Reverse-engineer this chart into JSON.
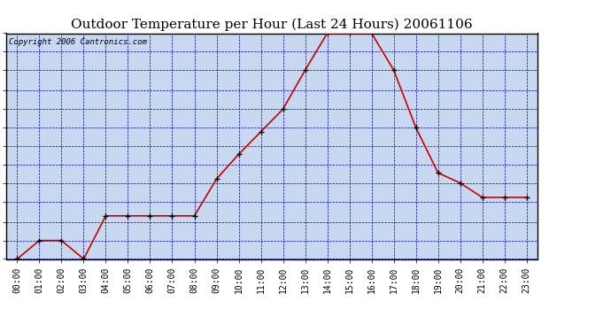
{
  "title": "Outdoor Temperature per Hour (Last 24 Hours) 20061106",
  "copyright_text": "Copyright 2006 Cantronics.com",
  "hours": [
    0,
    1,
    2,
    3,
    4,
    5,
    6,
    7,
    8,
    9,
    10,
    11,
    12,
    13,
    14,
    15,
    16,
    17,
    18,
    19,
    20,
    21,
    22,
    23
  ],
  "hour_labels": [
    "00:00",
    "01:00",
    "02:00",
    "03:00",
    "04:00",
    "05:00",
    "06:00",
    "07:00",
    "08:00",
    "09:00",
    "10:00",
    "11:00",
    "12:00",
    "13:00",
    "14:00",
    "15:00",
    "16:00",
    "17:00",
    "18:00",
    "19:00",
    "20:00",
    "21:00",
    "22:00",
    "23:00"
  ],
  "temps": [
    42.0,
    42.9,
    42.9,
    42.0,
    44.1,
    44.1,
    44.1,
    44.1,
    44.1,
    45.9,
    47.1,
    48.2,
    49.3,
    51.2,
    53.0,
    53.0,
    53.0,
    51.2,
    48.4,
    46.2,
    45.7,
    45.0,
    45.0,
    45.0
  ],
  "line_color": "#cc0000",
  "marker_color": "#000000",
  "bg_color": "#ffffff",
  "plot_bg_color": "#c8d8f0",
  "grid_color": "#0000bb",
  "title_color": "#000000",
  "border_color": "#000000",
  "ylim": [
    42.0,
    53.0
  ],
  "ytick_vals": [
    42.0,
    42.9,
    43.8,
    44.8,
    45.7,
    46.6,
    47.5,
    48.4,
    49.3,
    50.2,
    51.2,
    52.1,
    53.0
  ],
  "title_fontsize": 11,
  "copyright_fontsize": 6.5,
  "tick_fontsize": 8.5,
  "xtick_fontsize": 7
}
